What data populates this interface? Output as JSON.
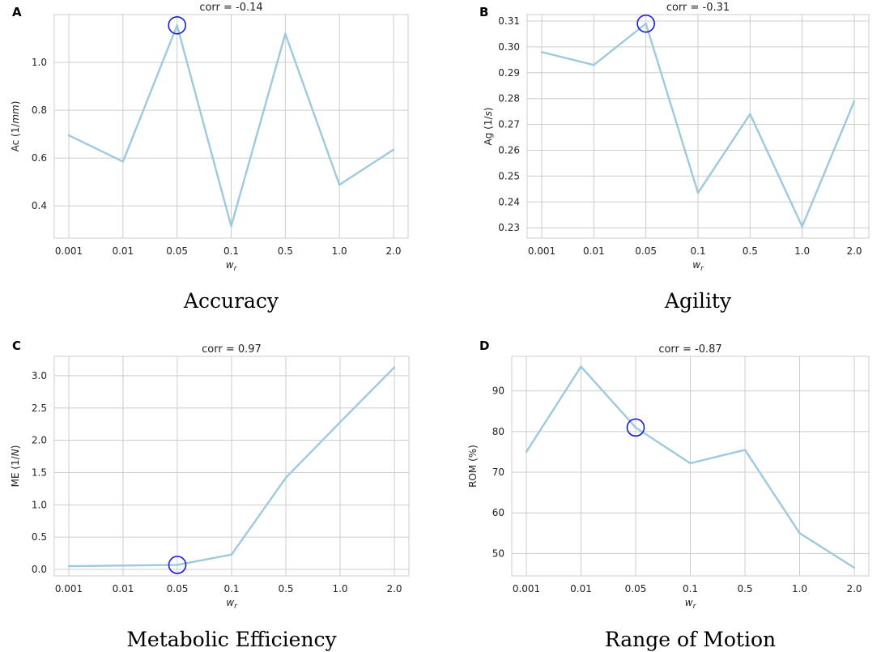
{
  "colors": {
    "line": "#9ec9de",
    "grid": "#cccccc",
    "highlight": "#1a1adb"
  },
  "chart_data": [
    {
      "type": "line",
      "panel_letter": "A",
      "title": "corr = -0.14",
      "caption": "Accuracy",
      "xlabel": "w",
      "xlabel_sub": "r",
      "ylabel": "Ac (1/",
      "ylabel_unit": "mm",
      "ylabel_end": ")",
      "categories": [
        "0.001",
        "0.01",
        "0.05",
        "0.1",
        "0.5",
        "1.0",
        "2.0"
      ],
      "values": [
        0.695,
        0.585,
        1.155,
        0.315,
        1.12,
        0.488,
        0.635
      ],
      "yticks": [
        0.4,
        0.6,
        0.8,
        1.0
      ],
      "ytick_labels": [
        "0.4",
        "0.6",
        "0.8",
        "1.0"
      ],
      "ylim": [
        0.265,
        1.2
      ],
      "highlight_index": 2
    },
    {
      "type": "line",
      "panel_letter": "B",
      "title": "corr = -0.31",
      "caption": "Agility",
      "xlabel": "w",
      "xlabel_sub": "r",
      "ylabel": "Ag (1/",
      "ylabel_unit": "s",
      "ylabel_end": ")",
      "categories": [
        "0.001",
        "0.01",
        "0.05",
        "0.1",
        "0.5",
        "1.0",
        "2.0"
      ],
      "values": [
        0.298,
        0.293,
        0.309,
        0.2435,
        0.274,
        0.2305,
        0.279
      ],
      "yticks": [
        0.23,
        0.24,
        0.25,
        0.26,
        0.27,
        0.28,
        0.29,
        0.3,
        0.31
      ],
      "ytick_labels": [
        "0.23",
        "0.24",
        "0.25",
        "0.26",
        "0.27",
        "0.28",
        "0.29",
        "0.30",
        "0.31"
      ],
      "ylim": [
        0.226,
        0.3125
      ],
      "highlight_index": 2
    },
    {
      "type": "line",
      "panel_letter": "C",
      "title": "corr = 0.97",
      "caption": "Metabolic Efficiency",
      "xlabel": "w",
      "xlabel_sub": "r",
      "ylabel": "ME (1/",
      "ylabel_unit": "N",
      "ylabel_end": ")",
      "categories": [
        "0.001",
        "0.01",
        "0.05",
        "0.1",
        "0.5",
        "1.0",
        "2.0"
      ],
      "values": [
        0.05,
        0.06,
        0.07,
        0.23,
        1.42,
        2.28,
        3.13
      ],
      "yticks": [
        0.0,
        0.5,
        1.0,
        1.5,
        2.0,
        2.5,
        3.0
      ],
      "ytick_labels": [
        "0.0",
        "0.5",
        "1.0",
        "1.5",
        "2.0",
        "2.5",
        "3.0"
      ],
      "ylim": [
        -0.1,
        3.3
      ],
      "highlight_index": 2
    },
    {
      "type": "line",
      "panel_letter": "D",
      "title": "corr = -0.87",
      "caption": "Range of Motion",
      "xlabel": "w",
      "xlabel_sub": "r",
      "ylabel": "ROM (%)",
      "ylabel_unit": "",
      "ylabel_end": "",
      "categories": [
        "0.001",
        "0.01",
        "0.05",
        "0.1",
        "0.5",
        "1.0",
        "2.0"
      ],
      "values": [
        75,
        96,
        81,
        72.2,
        75.5,
        55,
        46.5
      ],
      "yticks": [
        50,
        60,
        70,
        80,
        90
      ],
      "ytick_labels": [
        "50",
        "60",
        "70",
        "80",
        "90"
      ],
      "ylim": [
        44.5,
        98.5
      ],
      "highlight_index": 2
    }
  ]
}
